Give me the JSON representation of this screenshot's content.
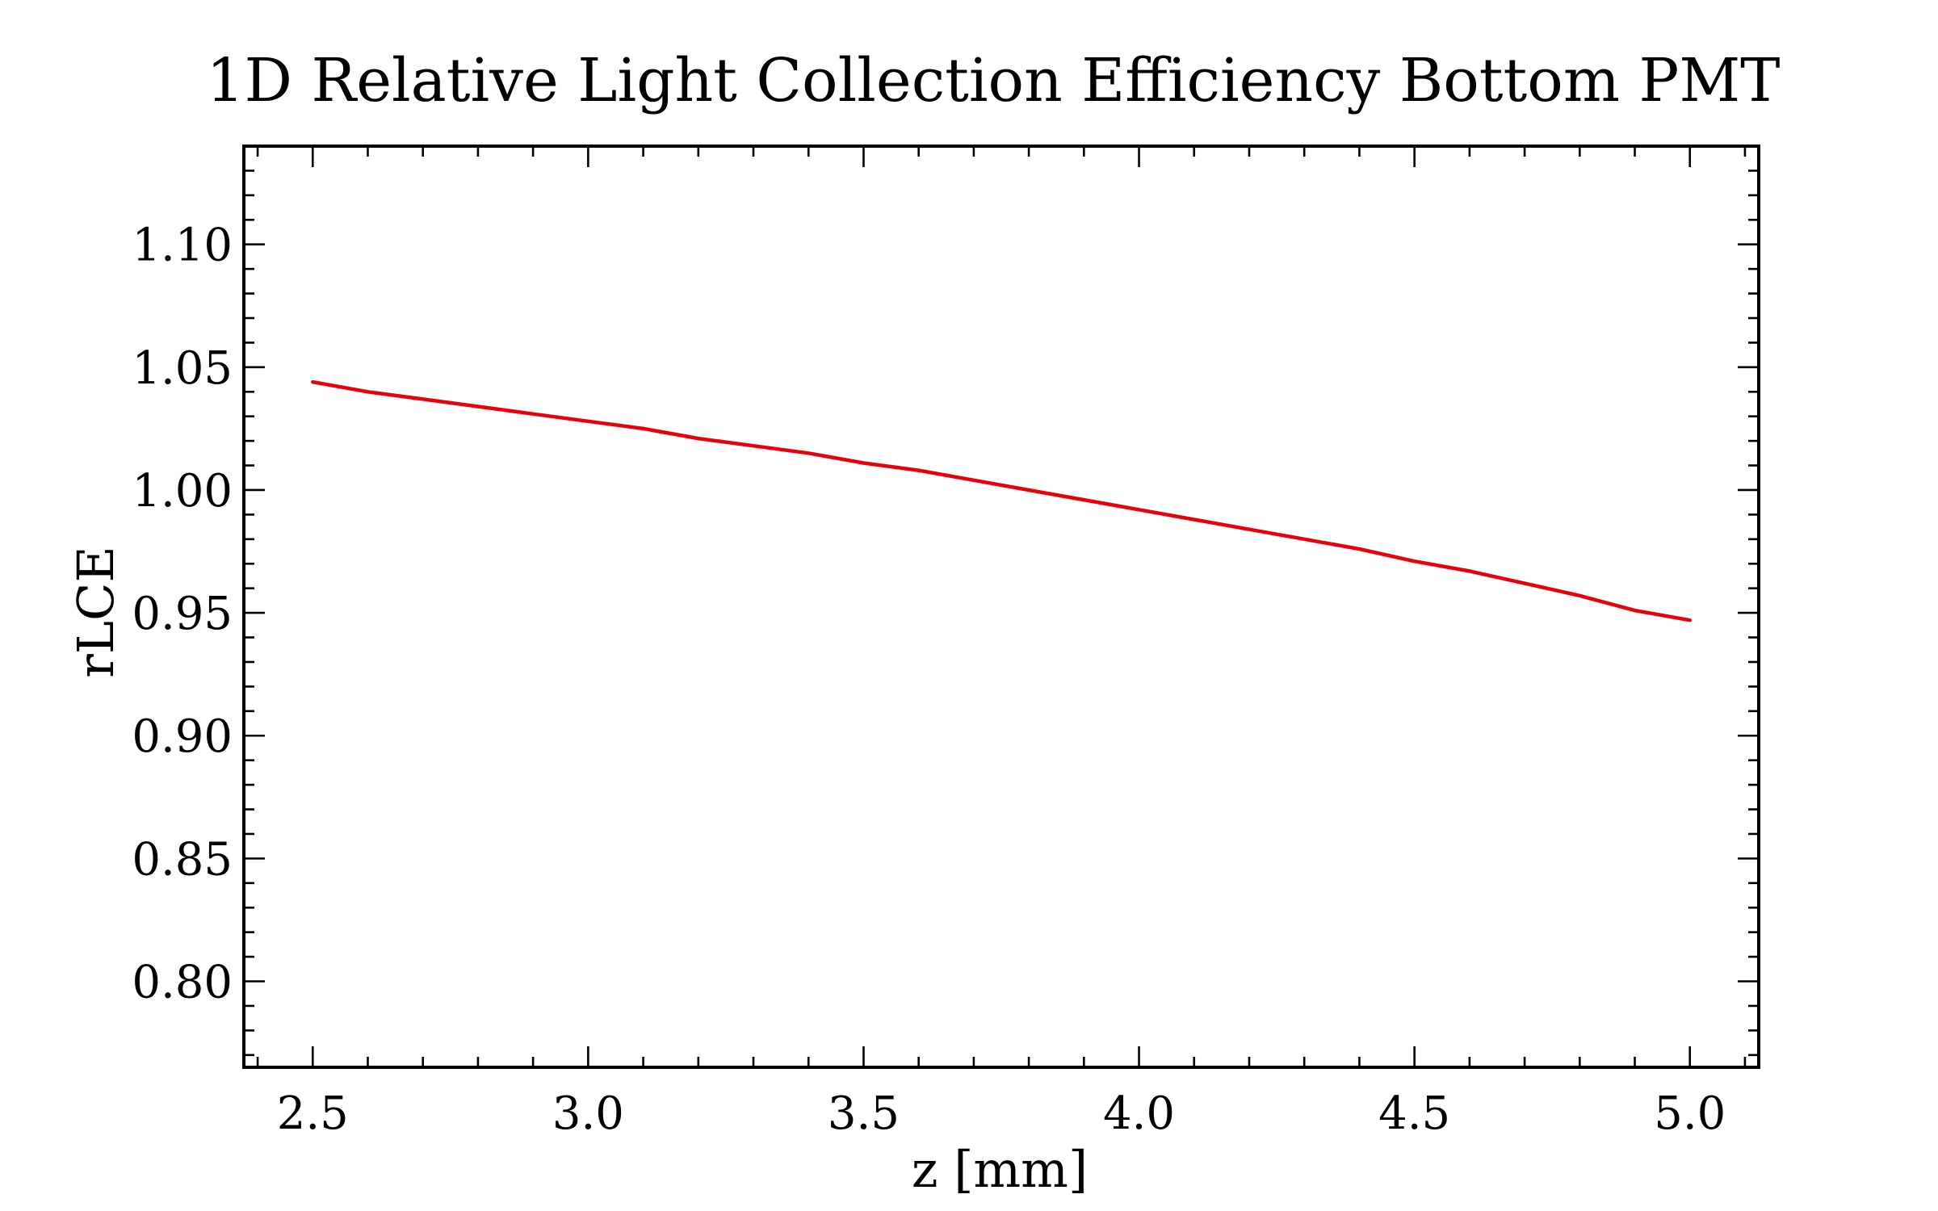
{
  "chart_data": {
    "type": "line",
    "title": "1D Relative Light Collection Efficiency Bottom PMT",
    "xlabel": "z [mm]",
    "ylabel": "rLCE",
    "xlim": [
      2.375,
      5.125
    ],
    "ylim": [
      0.765,
      1.14
    ],
    "xticks": [
      2.5,
      3.0,
      3.5,
      4.0,
      4.5,
      5.0
    ],
    "xtick_labels": [
      "2.5",
      "3.0",
      "3.5",
      "4.0",
      "4.5",
      "5.0"
    ],
    "yticks": [
      0.8,
      0.85,
      0.9,
      0.95,
      1.0,
      1.05,
      1.1
    ],
    "ytick_labels": [
      "0.80",
      "0.85",
      "0.90",
      "0.95",
      "1.00",
      "1.05",
      "1.10"
    ],
    "grid": false,
    "series": [
      {
        "color": "#e8000b",
        "x": [
          2.5,
          2.6,
          2.7,
          2.8,
          2.9,
          3.0,
          3.1,
          3.2,
          3.3,
          3.4,
          3.5,
          3.6,
          3.7,
          3.8,
          3.9,
          4.0,
          4.1,
          4.2,
          4.3,
          4.4,
          4.5,
          4.6,
          4.7,
          4.8,
          4.9,
          5.0
        ],
        "y": [
          1.044,
          1.04,
          1.037,
          1.034,
          1.031,
          1.028,
          1.025,
          1.021,
          1.018,
          1.015,
          1.011,
          1.008,
          1.004,
          1.0,
          0.996,
          0.992,
          0.988,
          0.984,
          0.98,
          0.976,
          0.971,
          0.967,
          0.962,
          0.957,
          0.951,
          0.947
        ]
      }
    ]
  }
}
